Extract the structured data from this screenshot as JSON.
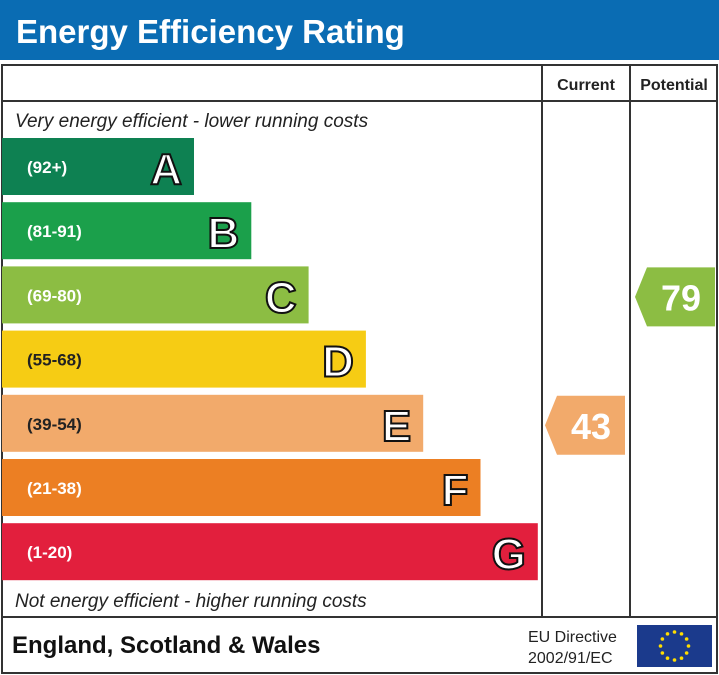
{
  "title": "Energy Efficiency Rating",
  "columns": {
    "current": "Current",
    "potential": "Potential"
  },
  "top_note": "Very energy efficient - lower running costs",
  "bottom_note": "Not energy efficient - higher running costs",
  "footer": {
    "region": "England, Scotland & Wales",
    "directive_line1": "EU Directive",
    "directive_line2": "2002/91/EC",
    "flag": "eu-flag-icon"
  },
  "colors": {
    "header": "#0a6cb3"
  },
  "chart_data": {
    "type": "bar",
    "title": "Energy Efficiency Rating",
    "categories": [
      "A",
      "B",
      "C",
      "D",
      "E",
      "F",
      "G"
    ],
    "ranges": [
      "(92+)",
      "(81-91)",
      "(69-80)",
      "(55-68)",
      "(39-54)",
      "(21-38)",
      "(1-20)"
    ],
    "colors": [
      "#0e8152",
      "#1ba04b",
      "#8cbd43",
      "#f6cc14",
      "#f2aa6b",
      "#ec7f23",
      "#e21f3d"
    ],
    "current": {
      "value": 43,
      "band": "E",
      "color": "#f2aa6b"
    },
    "potential": {
      "value": 79,
      "band": "C",
      "color": "#8cbd43"
    }
  }
}
